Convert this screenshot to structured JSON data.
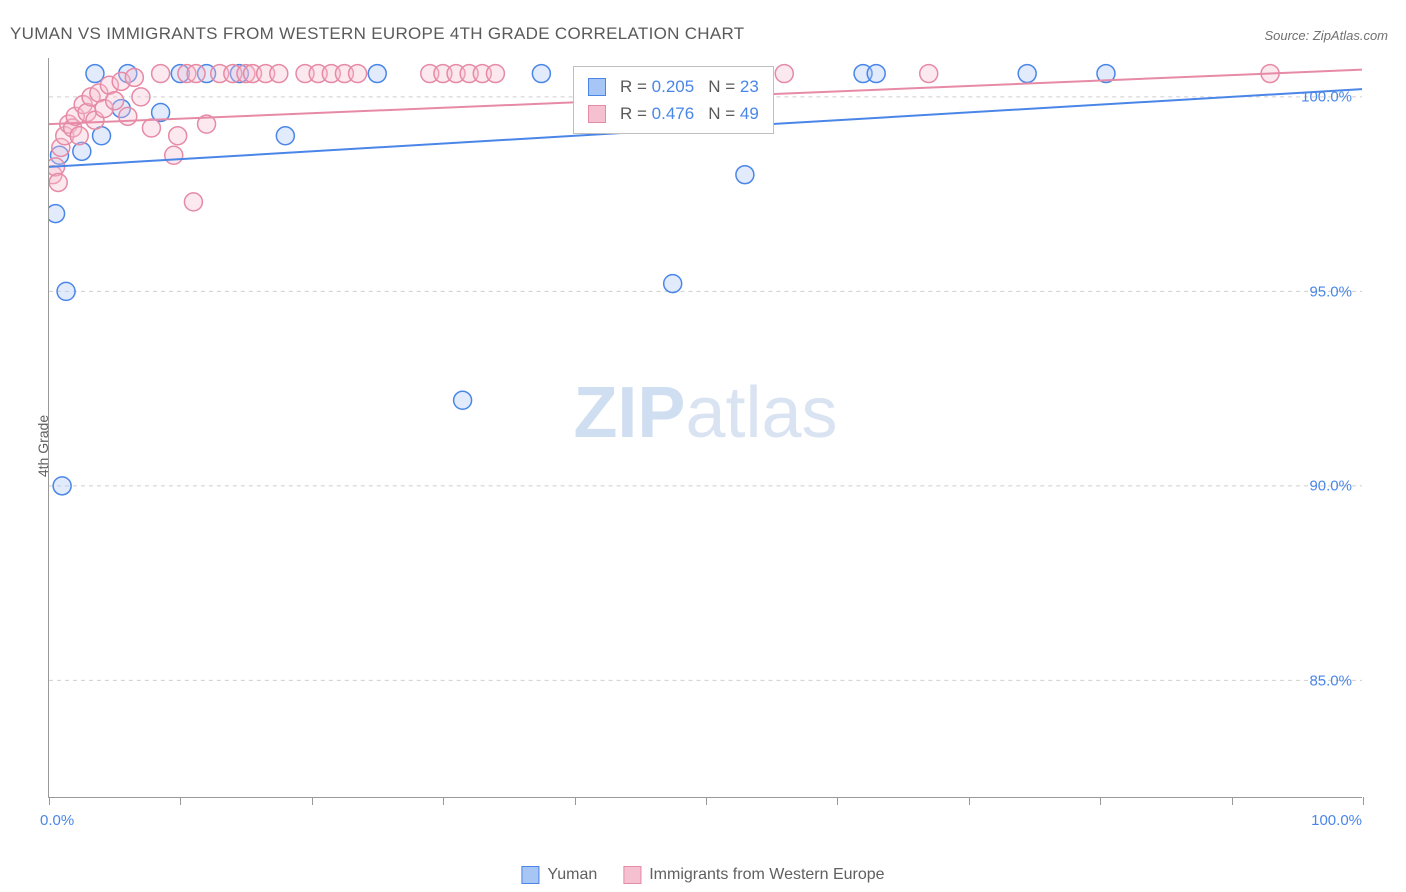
{
  "title": "YUMAN VS IMMIGRANTS FROM WESTERN EUROPE 4TH GRADE CORRELATION CHART",
  "source": "Source: ZipAtlas.com",
  "y_axis_label": "4th Grade",
  "watermark_bold": "ZIP",
  "watermark_light": "atlas",
  "chart": {
    "type": "scatter",
    "background_color": "#ffffff",
    "grid_color": "#cfcfcf",
    "axis_color": "#999999",
    "text_color": "#606060",
    "value_color": "#4a86e8",
    "title_fontsize": 17,
    "label_fontsize": 14,
    "tick_fontsize": 15,
    "xlim": [
      0,
      100
    ],
    "ylim": [
      82,
      101
    ],
    "y_ticks": [
      85,
      90,
      95,
      100
    ],
    "y_tick_labels": [
      "85.0%",
      "90.0%",
      "95.0%",
      "100.0%"
    ],
    "x_ticks": [
      0,
      10,
      20,
      30,
      40,
      50,
      60,
      70,
      80,
      90,
      100
    ],
    "x_tick_start_label": "0.0%",
    "x_tick_end_label": "100.0%",
    "marker_radius": 9,
    "marker_stroke_width": 1.5,
    "marker_fill_opacity": 0.35,
    "trendline_width": 2,
    "series": [
      {
        "key": "yuman",
        "label": "Yuman",
        "color_stroke": "#4a86e8",
        "color_fill": "#a8c6f5",
        "R": "0.205",
        "N": "23",
        "trendline": {
          "x1": 0,
          "y1": 98.2,
          "x2": 100,
          "y2": 100.2
        },
        "points": [
          {
            "x": 0.5,
            "y": 97.0
          },
          {
            "x": 0.8,
            "y": 98.5
          },
          {
            "x": 1.0,
            "y": 90.0
          },
          {
            "x": 1.3,
            "y": 95.0
          },
          {
            "x": 2.5,
            "y": 98.6
          },
          {
            "x": 3.5,
            "y": 100.6
          },
          {
            "x": 4.0,
            "y": 99.0
          },
          {
            "x": 5.5,
            "y": 99.7
          },
          {
            "x": 6.0,
            "y": 100.6
          },
          {
            "x": 8.5,
            "y": 99.6
          },
          {
            "x": 10.0,
            "y": 100.6
          },
          {
            "x": 12.0,
            "y": 100.6
          },
          {
            "x": 14.5,
            "y": 100.6
          },
          {
            "x": 18.0,
            "y": 99.0
          },
          {
            "x": 25.0,
            "y": 100.6
          },
          {
            "x": 31.5,
            "y": 92.2
          },
          {
            "x": 37.5,
            "y": 100.6
          },
          {
            "x": 47.5,
            "y": 95.2
          },
          {
            "x": 53.0,
            "y": 98.0
          },
          {
            "x": 62.0,
            "y": 100.6
          },
          {
            "x": 74.5,
            "y": 100.6
          },
          {
            "x": 80.5,
            "y": 100.6
          },
          {
            "x": 63.0,
            "y": 100.6
          }
        ]
      },
      {
        "key": "western_europe",
        "label": "Immigrants from Western Europe",
        "color_stroke": "#e68aa6",
        "color_fill": "#f5c1d1",
        "R": "0.476",
        "N": "49",
        "trendline": {
          "x1": 0,
          "y1": 99.3,
          "x2": 100,
          "y2": 100.7
        },
        "points": [
          {
            "x": 0.3,
            "y": 98.0
          },
          {
            "x": 0.5,
            "y": 98.2
          },
          {
            "x": 0.7,
            "y": 97.8
          },
          {
            "x": 0.9,
            "y": 98.7
          },
          {
            "x": 1.2,
            "y": 99.0
          },
          {
            "x": 1.5,
            "y": 99.3
          },
          {
            "x": 1.8,
            "y": 99.2
          },
          {
            "x": 2.0,
            "y": 99.5
          },
          {
            "x": 2.3,
            "y": 99.0
          },
          {
            "x": 2.6,
            "y": 99.8
          },
          {
            "x": 2.9,
            "y": 99.6
          },
          {
            "x": 3.2,
            "y": 100.0
          },
          {
            "x": 3.5,
            "y": 99.4
          },
          {
            "x": 3.8,
            "y": 100.1
          },
          {
            "x": 4.2,
            "y": 99.7
          },
          {
            "x": 4.6,
            "y": 100.3
          },
          {
            "x": 5.0,
            "y": 99.9
          },
          {
            "x": 5.5,
            "y": 100.4
          },
          {
            "x": 6.0,
            "y": 99.5
          },
          {
            "x": 6.5,
            "y": 100.5
          },
          {
            "x": 7.0,
            "y": 100.0
          },
          {
            "x": 7.8,
            "y": 99.2
          },
          {
            "x": 8.5,
            "y": 100.6
          },
          {
            "x": 9.5,
            "y": 98.5
          },
          {
            "x": 9.8,
            "y": 99.0
          },
          {
            "x": 10.5,
            "y": 100.6
          },
          {
            "x": 11.0,
            "y": 97.3
          },
          {
            "x": 11.2,
            "y": 100.6
          },
          {
            "x": 12.0,
            "y": 99.3
          },
          {
            "x": 13.0,
            "y": 100.6
          },
          {
            "x": 14.0,
            "y": 100.6
          },
          {
            "x": 15.0,
            "y": 100.6
          },
          {
            "x": 15.5,
            "y": 100.6
          },
          {
            "x": 16.5,
            "y": 100.6
          },
          {
            "x": 17.5,
            "y": 100.6
          },
          {
            "x": 19.5,
            "y": 100.6
          },
          {
            "x": 20.5,
            "y": 100.6
          },
          {
            "x": 21.5,
            "y": 100.6
          },
          {
            "x": 22.5,
            "y": 100.6
          },
          {
            "x": 23.5,
            "y": 100.6
          },
          {
            "x": 29.0,
            "y": 100.6
          },
          {
            "x": 30.0,
            "y": 100.6
          },
          {
            "x": 31.0,
            "y": 100.6
          },
          {
            "x": 32.0,
            "y": 100.6
          },
          {
            "x": 33.0,
            "y": 100.6
          },
          {
            "x": 34.0,
            "y": 100.6
          },
          {
            "x": 56.0,
            "y": 100.6
          },
          {
            "x": 67.0,
            "y": 100.6
          },
          {
            "x": 93.0,
            "y": 100.6
          }
        ]
      }
    ]
  },
  "legend_top": {
    "R_label": "R =",
    "N_label": "N ="
  }
}
